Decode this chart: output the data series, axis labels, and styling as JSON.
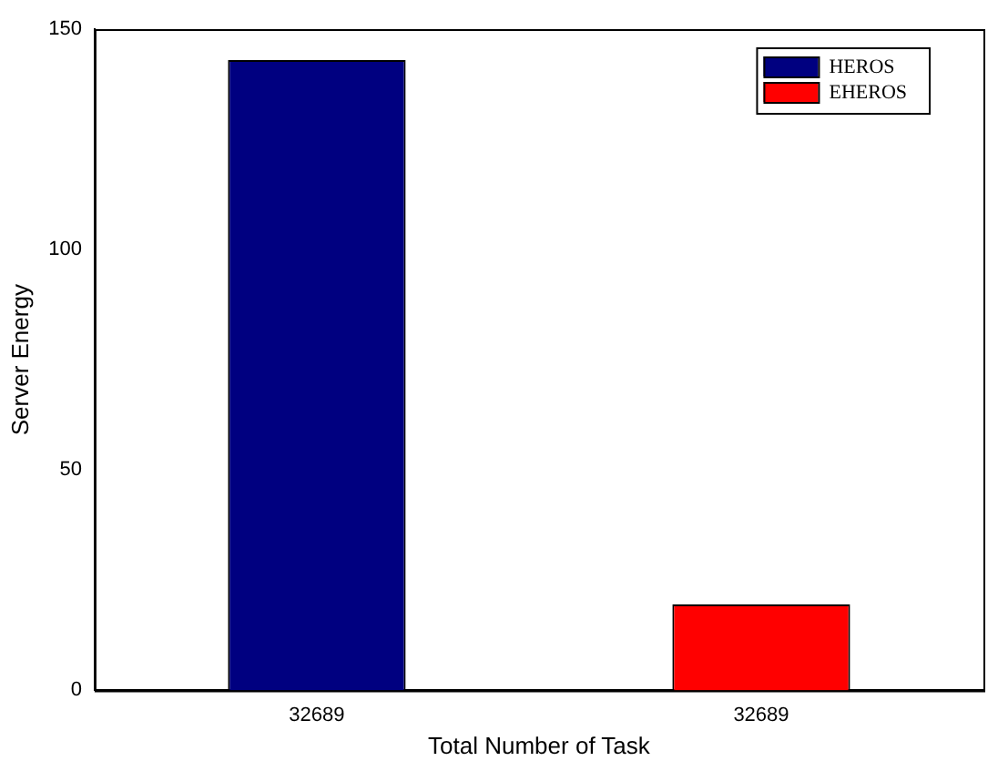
{
  "chart_data": {
    "type": "bar",
    "xlabel": "Total Number of Task",
    "ylabel": "Server Energy",
    "categories": [
      "32689",
      "32689"
    ],
    "series": [
      {
        "name": "HEROS",
        "color": "#000080",
        "values": [
          143,
          null
        ]
      },
      {
        "name": "EHEROS",
        "color": "#ff0000",
        "values": [
          null,
          19.5
        ]
      }
    ],
    "ylim": [
      0,
      150
    ],
    "yticks": [
      0,
      50,
      100,
      150
    ],
    "grid": false,
    "legend": "top right"
  }
}
